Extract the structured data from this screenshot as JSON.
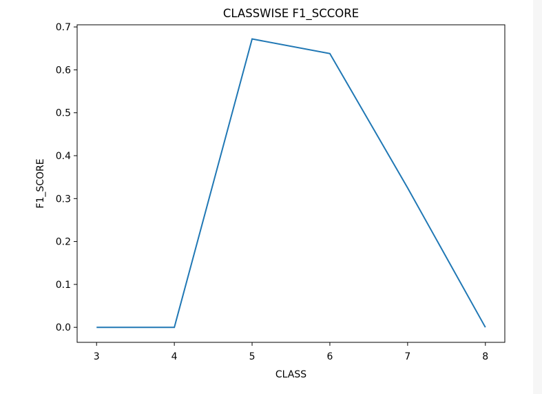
{
  "chart_data": {
    "type": "line",
    "title": "CLASSWISE F1_SCCORE",
    "xlabel": "CLASS",
    "ylabel": "F1_SCORE",
    "x": [
      3,
      4,
      5,
      6,
      7,
      8
    ],
    "series": [
      {
        "values": [
          0.0,
          0.0,
          0.672,
          0.638,
          0.325,
          0.0
        ],
        "color": "#1f77b4"
      }
    ],
    "xlim": [
      2.75,
      8.25
    ],
    "ylim": [
      -0.035,
      0.705
    ],
    "xticks": [
      3,
      4,
      5,
      6,
      7,
      8
    ],
    "yticks": [
      0.0,
      0.1,
      0.2,
      0.3,
      0.4,
      0.5,
      0.6,
      0.7
    ],
    "xtick_labels": [
      "3",
      "4",
      "5",
      "6",
      "7",
      "8"
    ],
    "ytick_labels": [
      "0.0",
      "0.1",
      "0.2",
      "0.3",
      "0.4",
      "0.5",
      "0.6",
      "0.7"
    ],
    "grid": false,
    "legend": "none"
  }
}
